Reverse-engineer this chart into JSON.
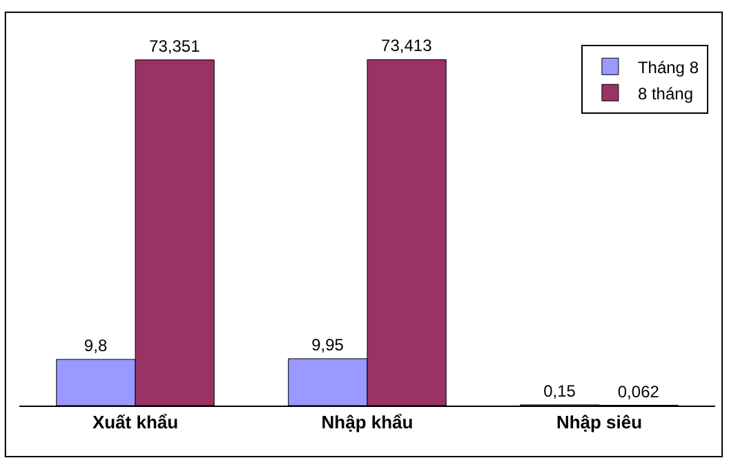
{
  "chart_data": {
    "type": "bar",
    "categories": [
      "Xuất khẩu",
      "Nhập khẩu",
      "Nhập siêu"
    ],
    "series": [
      {
        "name": "Tháng 8",
        "color": "#9999ff",
        "values": [
          9.8,
          9.95,
          0.15
        ],
        "value_labels": [
          "9,8",
          "9,95",
          "0,15"
        ]
      },
      {
        "name": "8 tháng",
        "color": "#993366",
        "values": [
          73.351,
          73.413,
          0.062
        ],
        "value_labels": [
          "73,351",
          "73,413",
          "0,062"
        ]
      }
    ],
    "legend": "top right"
  }
}
